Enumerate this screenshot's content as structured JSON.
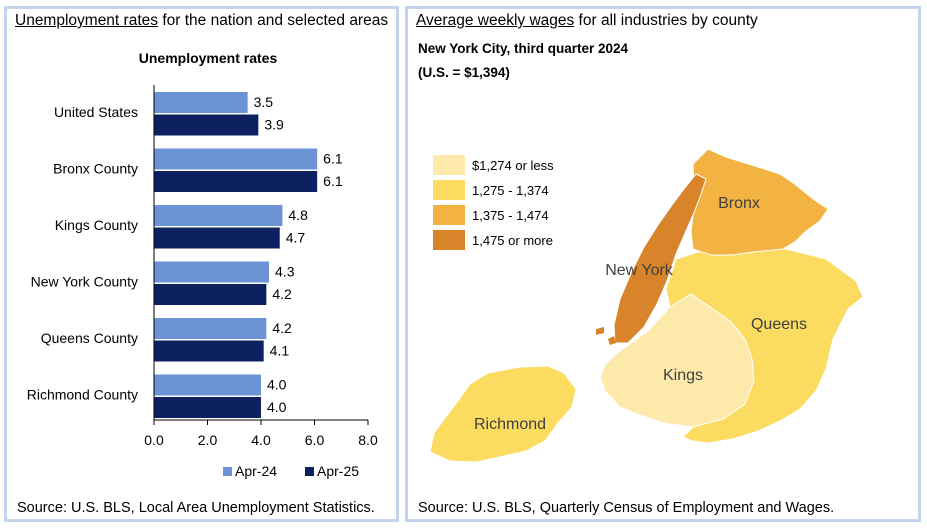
{
  "left_panel": {
    "heading_underlined": "Unemployment rates",
    "heading_rest": " for the nation and selected areas",
    "source": "Source: U.S. BLS, Local Area Unemployment Statistics."
  },
  "right_panel": {
    "heading_underlined": "Average weekly wages",
    "heading_rest": " for all industries by county",
    "subtitle1": "New York City, third quarter 2024",
    "subtitle2": "(U.S. = $1,394)",
    "source": "Source: U.S. BLS, Quarterly Census of Employment and Wages."
  },
  "map": {
    "legend": [
      {
        "label": "$1,274 or less",
        "color": "#fde9a9"
      },
      {
        "label": "1,275 - 1,374",
        "color": "#fcdb61"
      },
      {
        "label": "1,375 - 1,474",
        "color": "#f2b343"
      },
      {
        "label": "1,475 or more",
        "color": "#d7842a"
      }
    ],
    "counties": [
      {
        "name": "New York",
        "color": "#d7842a"
      },
      {
        "name": "Bronx",
        "color": "#f2b343"
      },
      {
        "name": "Queens",
        "color": "#fcdb61"
      },
      {
        "name": "Kings",
        "color": "#fde9a9"
      },
      {
        "name": "Richmond",
        "color": "#fcdb61"
      }
    ]
  },
  "chart_data": {
    "type": "bar",
    "orientation": "horizontal",
    "title": "Unemployment rates",
    "categories": [
      "United States",
      "Bronx County",
      "Kings County",
      "New York County",
      "Queens County",
      "Richmond County"
    ],
    "series": [
      {
        "name": "Apr-24",
        "color": "#6b93d6",
        "values": [
          3.5,
          6.1,
          4.8,
          4.3,
          4.2,
          4.0
        ],
        "labels": [
          "3.5",
          "6.1",
          "4.8",
          "4.3",
          "4.2",
          "4.0"
        ]
      },
      {
        "name": "Apr-25",
        "color": "#0d2161",
        "values": [
          3.9,
          6.1,
          4.7,
          4.2,
          4.1,
          4.0
        ],
        "labels": [
          "3.9",
          "6.1",
          "4.7",
          "4.2",
          "4.1",
          "4.0"
        ]
      }
    ],
    "xlim": [
      0,
      8
    ],
    "xticks": [
      "0.0",
      "2.0",
      "4.0",
      "6.0",
      "8.0"
    ],
    "legend_position": "bottom"
  }
}
